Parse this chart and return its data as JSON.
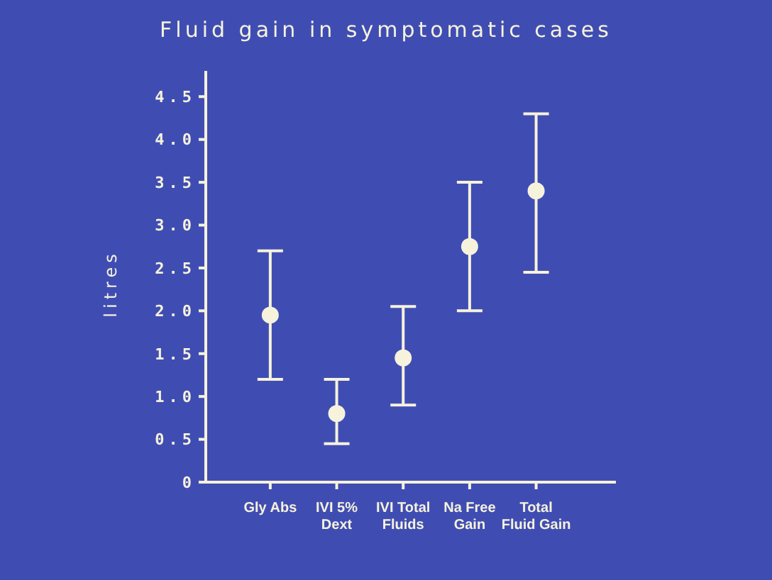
{
  "chart_data": {
    "type": "scatter",
    "title": "Fluid gain in symptomatic cases",
    "ylabel": "litres",
    "categories": [
      "Gly Abs",
      "IVI 5%\nDext",
      "IVI Total\nFluids",
      "Na Free\nGain",
      "Total\nFluid Gain"
    ],
    "series": [
      {
        "color": "#f6f2dc",
        "values": [
          1.95,
          0.8,
          1.45,
          2.75,
          3.4
        ],
        "errors": [
          [
            1.2,
            2.7
          ],
          [
            0.45,
            1.2
          ],
          [
            0.9,
            2.05
          ],
          [
            2.0,
            3.5
          ],
          [
            2.45,
            4.3
          ]
        ]
      }
    ],
    "ylim": [
      0,
      4.8
    ],
    "yticks": [
      0,
      {
        "value": 0.5,
        "label": "0.5"
      },
      {
        "value": 1,
        "label": "1.0"
      },
      {
        "value": 1.5,
        "label": "1.5"
      },
      {
        "value": 2,
        "label": "2.0"
      },
      {
        "value": 2.5,
        "label": "2.5"
      },
      {
        "value": 3,
        "label": "3.0"
      },
      {
        "value": 3.5,
        "label": "3.5"
      },
      {
        "value": 4,
        "label": "4.0"
      },
      {
        "value": 4.5,
        "label": "4.5"
      }
    ],
    "grid": false,
    "legend": false,
    "marker": "circle"
  }
}
